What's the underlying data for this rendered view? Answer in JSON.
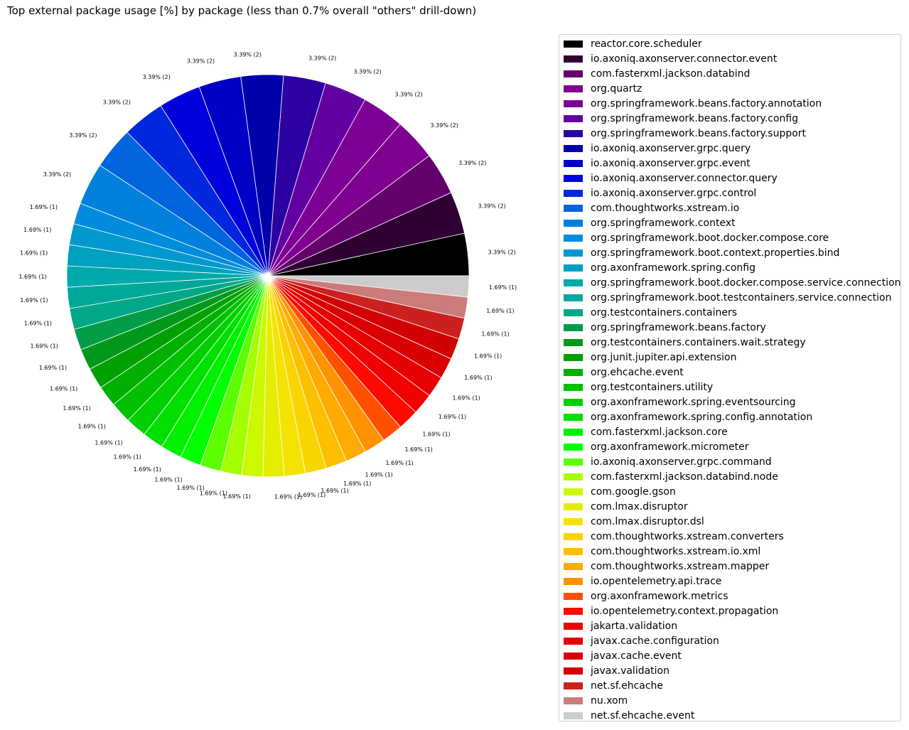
{
  "chart_data": {
    "type": "pie",
    "title": "Top external package usage [%] by package (less than 0.7% overall \"others\" drill-down)",
    "legend_position": "right",
    "start_angle_deg": 0,
    "direction": "counterclockwise",
    "slices": [
      {
        "name": "reactor.core.scheduler",
        "value": 3.39,
        "count": 2,
        "label": "3.39% (2)",
        "color": "#000000"
      },
      {
        "name": "io.axoniq.axonserver.connector.event",
        "value": 3.39,
        "count": 2,
        "label": "3.39% (2)",
        "color": "#300035"
      },
      {
        "name": "com.fasterxml.jackson.databind",
        "value": 3.39,
        "count": 2,
        "label": "3.39% (2)",
        "color": "#63006c"
      },
      {
        "name": "org.quartz",
        "value": 3.39,
        "count": 2,
        "label": "3.39% (2)",
        "color": "#7f008e"
      },
      {
        "name": "org.springframework.beans.factory.annotation",
        "value": 3.39,
        "count": 2,
        "label": "3.39% (2)",
        "color": "#7d0094"
      },
      {
        "name": "org.springframework.beans.factory.config",
        "value": 3.39,
        "count": 2,
        "label": "3.39% (2)",
        "color": "#6200a1"
      },
      {
        "name": "org.springframework.beans.factory.support",
        "value": 3.39,
        "count": 2,
        "label": "3.39% (2)",
        "color": "#2d00a4"
      },
      {
        "name": "io.axoniq.axonserver.grpc.query",
        "value": 3.39,
        "count": 2,
        "label": "3.39% (2)",
        "color": "#0000aa"
      },
      {
        "name": "io.axoniq.axonserver.grpc.event",
        "value": 3.39,
        "count": 2,
        "label": "3.39% (2)",
        "color": "#0000c4"
      },
      {
        "name": "io.axoniq.axonserver.connector.query",
        "value": 3.39,
        "count": 2,
        "label": "3.39% (2)",
        "color": "#0000dd"
      },
      {
        "name": "io.axoniq.axonserver.grpc.control",
        "value": 3.39,
        "count": 2,
        "label": "3.39% (2)",
        "color": "#0027dd"
      },
      {
        "name": "com.thoughtworks.xstream.io",
        "value": 3.39,
        "count": 2,
        "label": "3.39% (2)",
        "color": "#0064dd"
      },
      {
        "name": "org.springframework.context",
        "value": 3.39,
        "count": 2,
        "label": "3.39% (2)",
        "color": "#0080dd"
      },
      {
        "name": "org.springframework.boot.docker.compose.core",
        "value": 1.69,
        "count": 1,
        "label": "1.69% (1)",
        "color": "#008cdd"
      },
      {
        "name": "org.springframework.boot.context.properties.bind",
        "value": 1.69,
        "count": 1,
        "label": "1.69% (1)",
        "color": "#0098cf"
      },
      {
        "name": "org.axonframework.spring.config",
        "value": 1.69,
        "count": 1,
        "label": "1.69% (1)",
        "color": "#00a0bf"
      },
      {
        "name": "org.springframework.boot.docker.compose.service.connection",
        "value": 1.69,
        "count": 1,
        "label": "1.69% (1)",
        "color": "#00aaaa"
      },
      {
        "name": "org.springframework.boot.testcontainers.service.connection",
        "value": 1.69,
        "count": 1,
        "label": "1.69% (1)",
        "color": "#00a89a"
      },
      {
        "name": "org.testcontainers.containers",
        "value": 1.69,
        "count": 1,
        "label": "1.69% (1)",
        "color": "#00a887"
      },
      {
        "name": "org.springframework.beans.factory",
        "value": 1.69,
        "count": 1,
        "label": "1.69% (1)",
        "color": "#009c48"
      },
      {
        "name": "org.testcontainers.containers.wait.strategy",
        "value": 1.69,
        "count": 1,
        "label": "1.69% (1)",
        "color": "#00981a"
      },
      {
        "name": "org.junit.jupiter.api.extension",
        "value": 1.69,
        "count": 1,
        "label": "1.69% (1)",
        "color": "#00a000"
      },
      {
        "name": "org.ehcache.event",
        "value": 1.69,
        "count": 1,
        "label": "1.69% (1)",
        "color": "#00b000"
      },
      {
        "name": "org.testcontainers.utility",
        "value": 1.69,
        "count": 1,
        "label": "1.69% (1)",
        "color": "#00c000"
      },
      {
        "name": "org.axonframework.spring.eventsourcing",
        "value": 1.69,
        "count": 1,
        "label": "1.69% (1)",
        "color": "#00d000"
      },
      {
        "name": "org.axonframework.spring.config.annotation",
        "value": 1.69,
        "count": 1,
        "label": "1.69% (1)",
        "color": "#00e000"
      },
      {
        "name": "com.fasterxml.jackson.core",
        "value": 1.69,
        "count": 1,
        "label": "1.69% (1)",
        "color": "#00f000"
      },
      {
        "name": "org.axonframework.micrometer",
        "value": 1.69,
        "count": 1,
        "label": "1.69% (1)",
        "color": "#00ff00"
      },
      {
        "name": "io.axoniq.axonserver.grpc.command",
        "value": 1.69,
        "count": 1,
        "label": "1.69% (1)",
        "color": "#5cff00"
      },
      {
        "name": "com.fasterxml.jackson.databind.node",
        "value": 1.69,
        "count": 1,
        "label": "1.69% (1)",
        "color": "#a4ff00"
      },
      {
        "name": "com.google.gson",
        "value": 1.69,
        "count": 1,
        "label": "1.69% (1)",
        "color": "#ccf800"
      },
      {
        "name": "com.lmax.disruptor",
        "value": 1.69,
        "count": 1,
        "label": "1.69% (1)",
        "color": "#e4ed00"
      },
      {
        "name": "com.lmax.disruptor.dsl",
        "value": 1.69,
        "count": 1,
        "label": "1.69% (1)",
        "color": "#f4e200"
      },
      {
        "name": "com.thoughtworks.xstream.converters",
        "value": 1.69,
        "count": 1,
        "label": "1.69% (1)",
        "color": "#f8d500"
      },
      {
        "name": "com.thoughtworks.xstream.io.xml",
        "value": 1.69,
        "count": 1,
        "label": "1.69% (1)",
        "color": "#fcc000"
      },
      {
        "name": "com.thoughtworks.xstream.mapper",
        "value": 1.69,
        "count": 1,
        "label": "1.69% (1)",
        "color": "#ffab00"
      },
      {
        "name": "io.opentelemetry.api.trace",
        "value": 1.69,
        "count": 1,
        "label": "1.69% (1)",
        "color": "#ff9200"
      },
      {
        "name": "org.axonframework.metrics",
        "value": 1.69,
        "count": 1,
        "label": "1.69% (1)",
        "color": "#ff5000"
      },
      {
        "name": "io.opentelemetry.context.propagation",
        "value": 1.69,
        "count": 1,
        "label": "1.69% (1)",
        "color": "#ff0a00"
      },
      {
        "name": "jakarta.validation",
        "value": 1.69,
        "count": 1,
        "label": "1.69% (1)",
        "color": "#f00000"
      },
      {
        "name": "javax.cache.configuration",
        "value": 1.69,
        "count": 1,
        "label": "1.69% (1)",
        "color": "#e60000"
      },
      {
        "name": "javax.cache.event",
        "value": 1.69,
        "count": 1,
        "label": "1.69% (1)",
        "color": "#d80000"
      },
      {
        "name": "javax.validation",
        "value": 1.69,
        "count": 1,
        "label": "1.69% (1)",
        "color": "#d20000"
      },
      {
        "name": "net.sf.ehcache",
        "value": 1.69,
        "count": 1,
        "label": "1.69% (1)",
        "color": "#cc2020"
      },
      {
        "name": "nu.xom",
        "value": 1.69,
        "count": 1,
        "label": "1.69% (1)",
        "color": "#cc7b7b"
      },
      {
        "name": "net.sf.ehcache.event",
        "value": 1.69,
        "count": 1,
        "label": "1.69% (1)",
        "color": "#cccccc"
      }
    ]
  }
}
